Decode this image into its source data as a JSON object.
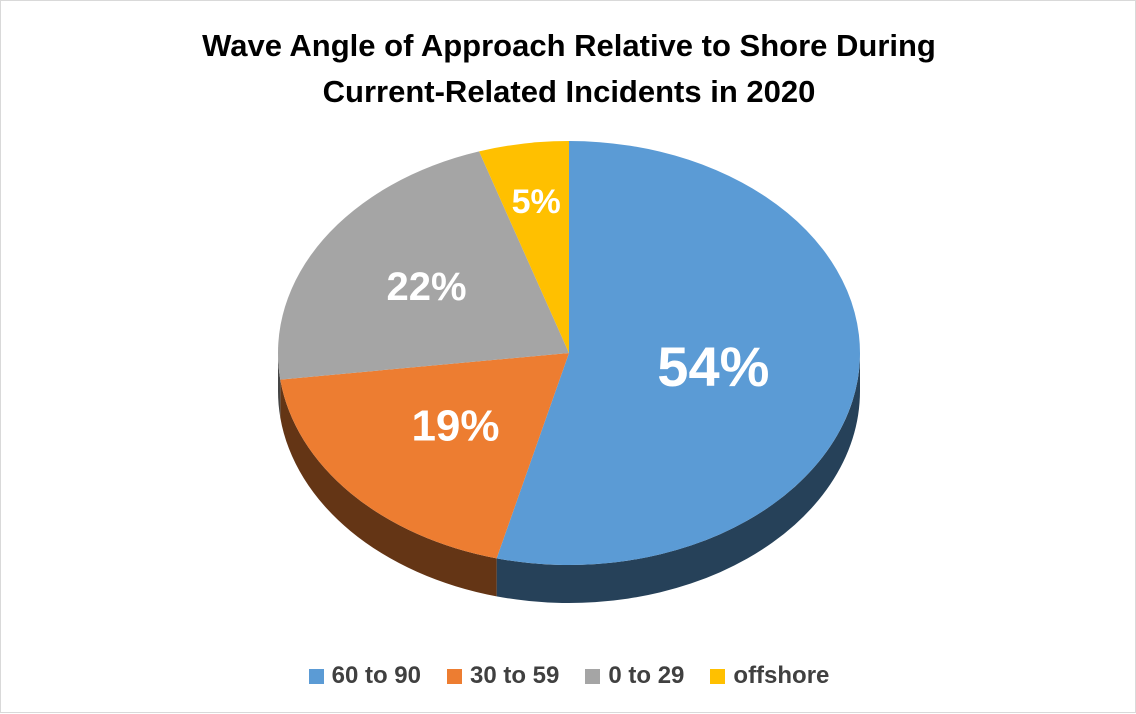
{
  "chart_data": {
    "type": "pie",
    "title_lines": [
      "Wave Angle of Approach Relative to Shore During",
      "Current-Related Incidents in 2020"
    ],
    "categories": [
      "60 to 90",
      "30 to 59",
      "0 to 29",
      "offshore"
    ],
    "values": [
      54,
      19,
      22,
      5
    ],
    "data_labels": [
      "54%",
      "19%",
      "22%",
      "5%"
    ],
    "colors": [
      "#5b9bd5",
      "#ed7d31",
      "#a5a5a5",
      "#ffc000"
    ],
    "legend_position": "bottom",
    "style": "3d"
  }
}
